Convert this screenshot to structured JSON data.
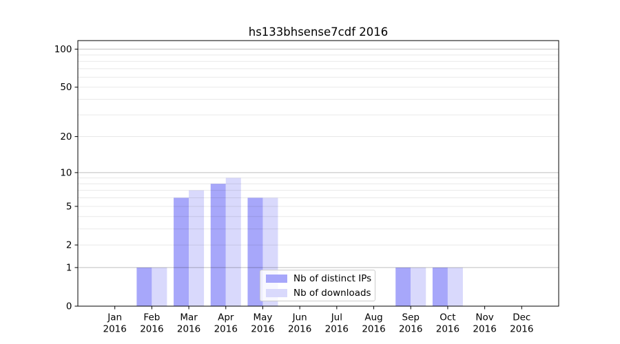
{
  "chart_data": {
    "type": "bar",
    "title": "hs133bhsense7cdf 2016",
    "categories": [
      "Jan",
      "Feb",
      "Mar",
      "Apr",
      "May",
      "Jun",
      "Jul",
      "Aug",
      "Sep",
      "Oct",
      "Nov",
      "Dec"
    ],
    "year_label": "2016",
    "series": [
      {
        "name": "Nb of distinct IPs",
        "color": "#a7a7fa",
        "values": [
          0,
          1,
          6,
          8,
          6,
          0,
          0,
          0,
          1,
          1,
          0,
          0
        ]
      },
      {
        "name": "Nb of downloads",
        "color": "#d9d9fc",
        "values": [
          0,
          1,
          7,
          9,
          6,
          0,
          0,
          0,
          1,
          1,
          0,
          0
        ]
      }
    ],
    "yticks": [
      0,
      1,
      2,
      5,
      10,
      20,
      50,
      100
    ],
    "yaxis_scale": "log1p",
    "ylim": [
      0,
      117
    ],
    "xlabel": "",
    "ylabel": "",
    "grid": "horizontal",
    "legend_position": "lower-center"
  }
}
